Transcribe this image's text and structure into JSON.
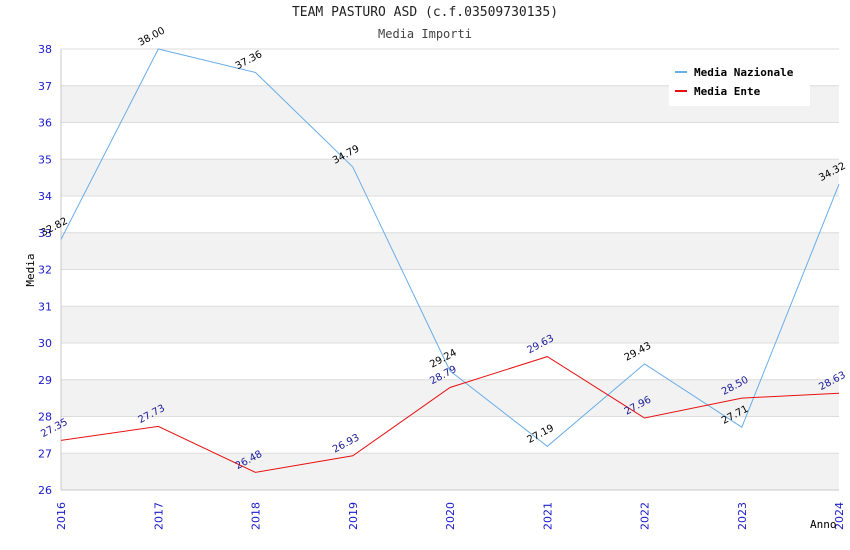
{
  "chart_data": {
    "type": "line",
    "title": "TEAM PASTURO ASD (c.f.03509730135)",
    "subtitle": "Media Importi",
    "xlabel": "Anno",
    "ylabel": "Media",
    "x": [
      "2016",
      "2017",
      "2018",
      "2019",
      "2020",
      "2021",
      "2022",
      "2023",
      "2024"
    ],
    "ylim": [
      26,
      38
    ],
    "yticks": [
      26,
      27,
      28,
      29,
      30,
      31,
      32,
      33,
      34,
      35,
      36,
      37,
      38
    ],
    "grid": "horizontal, alternating bands",
    "legend_position": "top-right",
    "series": [
      {
        "name": "Media Nazionale",
        "color": "#6aaee8",
        "label_color": "#000000",
        "values": [
          32.82,
          38.0,
          37.36,
          34.79,
          29.24,
          27.19,
          29.43,
          27.71,
          34.32
        ],
        "labels": [
          "32.82",
          "38.00",
          "37.36",
          "34.79",
          "29.24",
          "27.19",
          "29.43",
          "27.71",
          "34.32"
        ]
      },
      {
        "name": "Media Ente",
        "color": "#e81010",
        "label_color": "#1a1a99",
        "values": [
          27.35,
          27.73,
          26.48,
          26.93,
          28.79,
          29.63,
          27.96,
          28.5,
          28.63
        ],
        "labels": [
          "27.35",
          "27.73",
          "26.48",
          "26.93",
          "28.79",
          "29.63",
          "27.96",
          "28.50",
          "28.63"
        ]
      }
    ]
  }
}
